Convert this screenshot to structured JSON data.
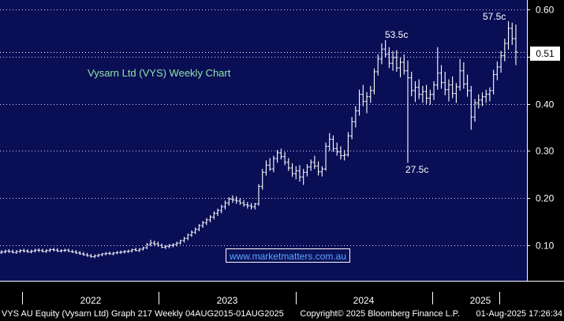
{
  "chart_data": {
    "type": "ohlc",
    "title": "Vysarn Ltd (VYS) Weekly Chart",
    "watermark": "www.marketmatters.com.au",
    "y_ticks": [
      "0.60",
      "0.50",
      "0.40",
      "0.30",
      "0.20",
      "0.10"
    ],
    "y_tick_values": [
      0.6,
      0.5,
      0.4,
      0.3,
      0.2,
      0.1
    ],
    "ylim": [
      0.025,
      0.62
    ],
    "grid": true,
    "x_labels": [
      "2022",
      "2023",
      "2024",
      "2025"
    ],
    "last_value_label": "0.51",
    "last_value": 0.51,
    "annotations": [
      {
        "label": "57.5c",
        "value": 0.575
      },
      {
        "label": "53.5c",
        "value": 0.535
      },
      {
        "label": "27.5c",
        "value": 0.275
      }
    ],
    "series": [
      {
        "values": [
          [
            0.085,
            0.09,
            0.082,
            0.086
          ],
          [
            0.086,
            0.091,
            0.083,
            0.088
          ],
          [
            0.088,
            0.092,
            0.084,
            0.087
          ],
          [
            0.087,
            0.091,
            0.083,
            0.085
          ],
          [
            0.085,
            0.09,
            0.082,
            0.087
          ],
          [
            0.087,
            0.092,
            0.084,
            0.089
          ],
          [
            0.089,
            0.093,
            0.085,
            0.088
          ],
          [
            0.088,
            0.092,
            0.084,
            0.086
          ],
          [
            0.086,
            0.091,
            0.083,
            0.088
          ],
          [
            0.088,
            0.093,
            0.085,
            0.09
          ],
          [
            0.09,
            0.094,
            0.086,
            0.089
          ],
          [
            0.089,
            0.093,
            0.085,
            0.087
          ],
          [
            0.087,
            0.092,
            0.084,
            0.089
          ],
          [
            0.089,
            0.094,
            0.086,
            0.091
          ],
          [
            0.091,
            0.095,
            0.087,
            0.09
          ],
          [
            0.09,
            0.094,
            0.086,
            0.088
          ],
          [
            0.088,
            0.092,
            0.085,
            0.089
          ],
          [
            0.089,
            0.093,
            0.086,
            0.09
          ],
          [
            0.09,
            0.093,
            0.086,
            0.087
          ],
          [
            0.087,
            0.091,
            0.084,
            0.086
          ],
          [
            0.086,
            0.09,
            0.082,
            0.084
          ],
          [
            0.084,
            0.088,
            0.08,
            0.082
          ],
          [
            0.082,
            0.086,
            0.078,
            0.08
          ],
          [
            0.08,
            0.084,
            0.076,
            0.078
          ],
          [
            0.078,
            0.082,
            0.074,
            0.076
          ],
          [
            0.076,
            0.081,
            0.073,
            0.078
          ],
          [
            0.078,
            0.082,
            0.075,
            0.08
          ],
          [
            0.08,
            0.084,
            0.077,
            0.082
          ],
          [
            0.082,
            0.086,
            0.079,
            0.083
          ],
          [
            0.083,
            0.087,
            0.08,
            0.082
          ],
          [
            0.082,
            0.086,
            0.079,
            0.084
          ],
          [
            0.084,
            0.088,
            0.081,
            0.085
          ],
          [
            0.085,
            0.089,
            0.082,
            0.086
          ],
          [
            0.086,
            0.09,
            0.083,
            0.087
          ],
          [
            0.087,
            0.091,
            0.084,
            0.088
          ],
          [
            0.088,
            0.093,
            0.085,
            0.091
          ],
          [
            0.091,
            0.095,
            0.087,
            0.089
          ],
          [
            0.089,
            0.094,
            0.086,
            0.092
          ],
          [
            0.092,
            0.097,
            0.089,
            0.095
          ],
          [
            0.095,
            0.105,
            0.092,
            0.102
          ],
          [
            0.102,
            0.112,
            0.098,
            0.105
          ],
          [
            0.105,
            0.11,
            0.099,
            0.103
          ],
          [
            0.103,
            0.108,
            0.097,
            0.1
          ],
          [
            0.1,
            0.104,
            0.094,
            0.096
          ],
          [
            0.096,
            0.101,
            0.092,
            0.098
          ],
          [
            0.098,
            0.103,
            0.094,
            0.1
          ],
          [
            0.1,
            0.104,
            0.096,
            0.102
          ],
          [
            0.102,
            0.108,
            0.098,
            0.105
          ],
          [
            0.105,
            0.112,
            0.102,
            0.11
          ],
          [
            0.11,
            0.118,
            0.106,
            0.115
          ],
          [
            0.115,
            0.125,
            0.111,
            0.122
          ],
          [
            0.122,
            0.132,
            0.118,
            0.128
          ],
          [
            0.128,
            0.138,
            0.124,
            0.134
          ],
          [
            0.134,
            0.145,
            0.13,
            0.142
          ],
          [
            0.142,
            0.152,
            0.137,
            0.148
          ],
          [
            0.148,
            0.158,
            0.143,
            0.154
          ],
          [
            0.154,
            0.164,
            0.149,
            0.16
          ],
          [
            0.16,
            0.172,
            0.155,
            0.168
          ],
          [
            0.168,
            0.178,
            0.162,
            0.174
          ],
          [
            0.174,
            0.186,
            0.168,
            0.182
          ],
          [
            0.182,
            0.195,
            0.176,
            0.19
          ],
          [
            0.19,
            0.202,
            0.184,
            0.198
          ],
          [
            0.198,
            0.206,
            0.19,
            0.196
          ],
          [
            0.196,
            0.204,
            0.188,
            0.194
          ],
          [
            0.194,
            0.2,
            0.186,
            0.19
          ],
          [
            0.19,
            0.196,
            0.182,
            0.186
          ],
          [
            0.186,
            0.192,
            0.178,
            0.184
          ],
          [
            0.184,
            0.19,
            0.176,
            0.182
          ],
          [
            0.182,
            0.19,
            0.176,
            0.188
          ],
          [
            0.188,
            0.23,
            0.184,
            0.225
          ],
          [
            0.225,
            0.262,
            0.218,
            0.255
          ],
          [
            0.255,
            0.28,
            0.248,
            0.27
          ],
          [
            0.27,
            0.285,
            0.258,
            0.262
          ],
          [
            0.262,
            0.29,
            0.255,
            0.284
          ],
          [
            0.284,
            0.302,
            0.275,
            0.296
          ],
          [
            0.296,
            0.305,
            0.282,
            0.288
          ],
          [
            0.288,
            0.298,
            0.27,
            0.276
          ],
          [
            0.276,
            0.285,
            0.258,
            0.264
          ],
          [
            0.264,
            0.274,
            0.245,
            0.252
          ],
          [
            0.252,
            0.268,
            0.24,
            0.258
          ],
          [
            0.258,
            0.27,
            0.235,
            0.245
          ],
          [
            0.245,
            0.262,
            0.228,
            0.255
          ],
          [
            0.255,
            0.272,
            0.246,
            0.266
          ],
          [
            0.266,
            0.282,
            0.258,
            0.276
          ],
          [
            0.276,
            0.29,
            0.262,
            0.268
          ],
          [
            0.268,
            0.278,
            0.248,
            0.256
          ],
          [
            0.256,
            0.268,
            0.246,
            0.262
          ],
          [
            0.262,
            0.318,
            0.258,
            0.31
          ],
          [
            0.31,
            0.338,
            0.3,
            0.325
          ],
          [
            0.325,
            0.333,
            0.298,
            0.305
          ],
          [
            0.305,
            0.318,
            0.29,
            0.298
          ],
          [
            0.298,
            0.31,
            0.282,
            0.29
          ],
          [
            0.29,
            0.302,
            0.28,
            0.292
          ],
          [
            0.292,
            0.34,
            0.288,
            0.332
          ],
          [
            0.332,
            0.372,
            0.325,
            0.362
          ],
          [
            0.362,
            0.395,
            0.35,
            0.385
          ],
          [
            0.385,
            0.43,
            0.375,
            0.42
          ],
          [
            0.42,
            0.44,
            0.395,
            0.405
          ],
          [
            0.405,
            0.425,
            0.38,
            0.415
          ],
          [
            0.415,
            0.438,
            0.402,
            0.428
          ],
          [
            0.428,
            0.475,
            0.42,
            0.468
          ],
          [
            0.468,
            0.505,
            0.46,
            0.495
          ],
          [
            0.495,
            0.528,
            0.484,
            0.516
          ],
          [
            0.516,
            0.535,
            0.498,
            0.505
          ],
          [
            0.505,
            0.52,
            0.476,
            0.486
          ],
          [
            0.486,
            0.512,
            0.47,
            0.498
          ],
          [
            0.498,
            0.514,
            0.468,
            0.476
          ],
          [
            0.476,
            0.498,
            0.456,
            0.488
          ],
          [
            0.488,
            0.505,
            0.462,
            0.47
          ],
          [
            0.47,
            0.492,
            0.275,
            0.455
          ],
          [
            0.455,
            0.468,
            0.416,
            0.428
          ],
          [
            0.428,
            0.448,
            0.404,
            0.435
          ],
          [
            0.435,
            0.452,
            0.41,
            0.42
          ],
          [
            0.42,
            0.438,
            0.402,
            0.426
          ],
          [
            0.426,
            0.44,
            0.4,
            0.412
          ],
          [
            0.412,
            0.43,
            0.398,
            0.42
          ],
          [
            0.42,
            0.448,
            0.408,
            0.44
          ],
          [
            0.44,
            0.52,
            0.43,
            0.465
          ],
          [
            0.465,
            0.482,
            0.432,
            0.445
          ],
          [
            0.445,
            0.468,
            0.418,
            0.43
          ],
          [
            0.43,
            0.452,
            0.405,
            0.44
          ],
          [
            0.44,
            0.458,
            0.412,
            0.422
          ],
          [
            0.422,
            0.444,
            0.402,
            0.436
          ],
          [
            0.436,
            0.495,
            0.428,
            0.47
          ],
          [
            0.47,
            0.488,
            0.432,
            0.442
          ],
          [
            0.442,
            0.462,
            0.415,
            0.428
          ],
          [
            0.428,
            0.438,
            0.345,
            0.372
          ],
          [
            0.372,
            0.41,
            0.362,
            0.402
          ],
          [
            0.402,
            0.42,
            0.39,
            0.408
          ],
          [
            0.408,
            0.424,
            0.395,
            0.415
          ],
          [
            0.415,
            0.43,
            0.402,
            0.42
          ],
          [
            0.42,
            0.435,
            0.405,
            0.428
          ],
          [
            0.428,
            0.472,
            0.42,
            0.462
          ],
          [
            0.462,
            0.49,
            0.45,
            0.478
          ],
          [
            0.478,
            0.512,
            0.466,
            0.502
          ],
          [
            0.502,
            0.538,
            0.49,
            0.528
          ],
          [
            0.528,
            0.575,
            0.515,
            0.56
          ],
          [
            0.56,
            0.572,
            0.525,
            0.538
          ],
          [
            0.538,
            0.568,
            0.482,
            0.51
          ]
        ]
      }
    ]
  },
  "annotations": {
    "high_label": "57.5c",
    "mid_high_label": "53.5c",
    "low_label": "27.5c"
  },
  "footer": {
    "left": "VYS AU Equity (Vysarn Ltd) Graph 217  Weekly 04AUG2015-01AUG2025",
    "center": "Copyright© 2025 Bloomberg Finance L.P.",
    "right": "01-Aug-2025 17:26:34"
  }
}
